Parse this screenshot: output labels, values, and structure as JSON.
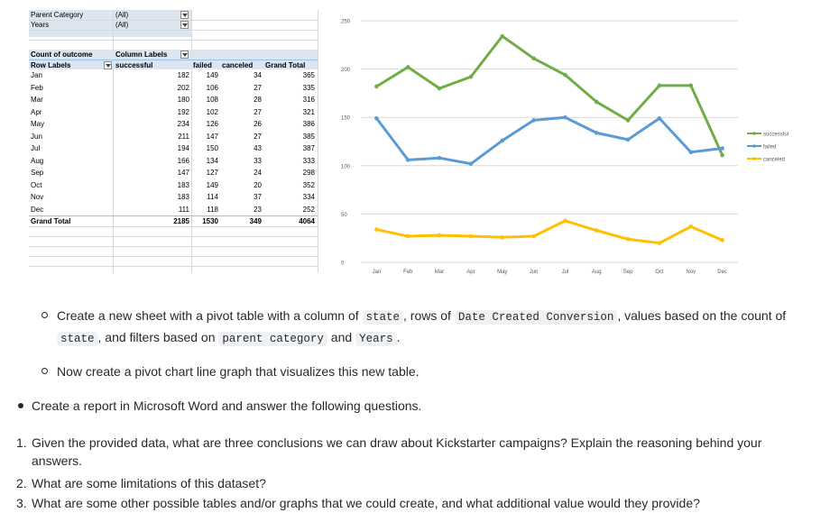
{
  "pivot": {
    "filters": [
      {
        "label": "Parent Category",
        "value": "(All)"
      },
      {
        "label": "Years",
        "value": "(All)"
      }
    ],
    "values_header": "Count of outcome",
    "column_labels": "Column Labels",
    "row_labels": "Row Labels",
    "headers": [
      "successful",
      "failed",
      "canceled",
      "Grand Total"
    ],
    "rows": [
      {
        "label": "Jan",
        "values": [
          "182",
          "149",
          "34",
          "365"
        ]
      },
      {
        "label": "Feb",
        "values": [
          "202",
          "106",
          "27",
          "335"
        ]
      },
      {
        "label": "Mar",
        "values": [
          "180",
          "108",
          "28",
          "316"
        ]
      },
      {
        "label": "Apr",
        "values": [
          "192",
          "102",
          "27",
          "321"
        ]
      },
      {
        "label": "May",
        "values": [
          "234",
          "126",
          "26",
          "386"
        ]
      },
      {
        "label": "Jun",
        "values": [
          "211",
          "147",
          "27",
          "385"
        ]
      },
      {
        "label": "Jul",
        "values": [
          "194",
          "150",
          "43",
          "387"
        ]
      },
      {
        "label": "Aug",
        "values": [
          "166",
          "134",
          "33",
          "333"
        ]
      },
      {
        "label": "Sep",
        "values": [
          "147",
          "127",
          "24",
          "298"
        ]
      },
      {
        "label": "Oct",
        "values": [
          "183",
          "149",
          "20",
          "352"
        ]
      },
      {
        "label": "Nov",
        "values": [
          "183",
          "114",
          "37",
          "334"
        ]
      },
      {
        "label": "Dec",
        "values": [
          "111",
          "118",
          "23",
          "252"
        ]
      }
    ],
    "total": {
      "label": "Grand Total",
      "values": [
        "2185",
        "1530",
        "349",
        "4064"
      ]
    }
  },
  "chart_data": {
    "type": "line",
    "categories": [
      "Jan",
      "Feb",
      "Mar",
      "Apr",
      "May",
      "Jun",
      "Jul",
      "Aug",
      "Sep",
      "Oct",
      "Nov",
      "Dec"
    ],
    "series": [
      {
        "name": "successful",
        "color": "#70ad47",
        "values": [
          182,
          202,
          180,
          192,
          234,
          211,
          194,
          166,
          147,
          183,
          183,
          111
        ]
      },
      {
        "name": "failed",
        "color": "#5b9bd5",
        "values": [
          149,
          106,
          108,
          102,
          126,
          147,
          150,
          134,
          127,
          149,
          114,
          118
        ]
      },
      {
        "name": "canceled",
        "color": "#ffc000",
        "values": [
          34,
          27,
          28,
          27,
          26,
          27,
          43,
          33,
          24,
          20,
          37,
          23
        ]
      }
    ],
    "ylim": [
      0,
      250
    ],
    "yticks": [
      "0",
      "50",
      "100",
      "150",
      "200",
      "250"
    ],
    "grid": true,
    "legend": "right"
  },
  "instructions": {
    "item1": {
      "parts": [
        "Create a new sheet with a pivot table with a column of ",
        "state",
        ", rows of ",
        "Date Created Conversion",
        ", values based on the count of ",
        "state",
        ", and filters based on ",
        "parent category",
        " and ",
        "Years",
        "."
      ]
    },
    "item2": "Now create a pivot chart line graph that visualizes this new table.",
    "item3": "Create a report in Microsoft Word and answer the following questions.",
    "questions": [
      {
        "num": "1.",
        "text": "Given the provided data, what are three conclusions we can draw about Kickstarter campaigns? Explain the reasoning behind your",
        "text2": "answers."
      },
      {
        "num": "2.",
        "text": "What are some limitations of this dataset?"
      },
      {
        "num": "3.",
        "text": "What are some other possible tables and/or graphs that we could create, and what additional value would they provide?"
      }
    ]
  }
}
